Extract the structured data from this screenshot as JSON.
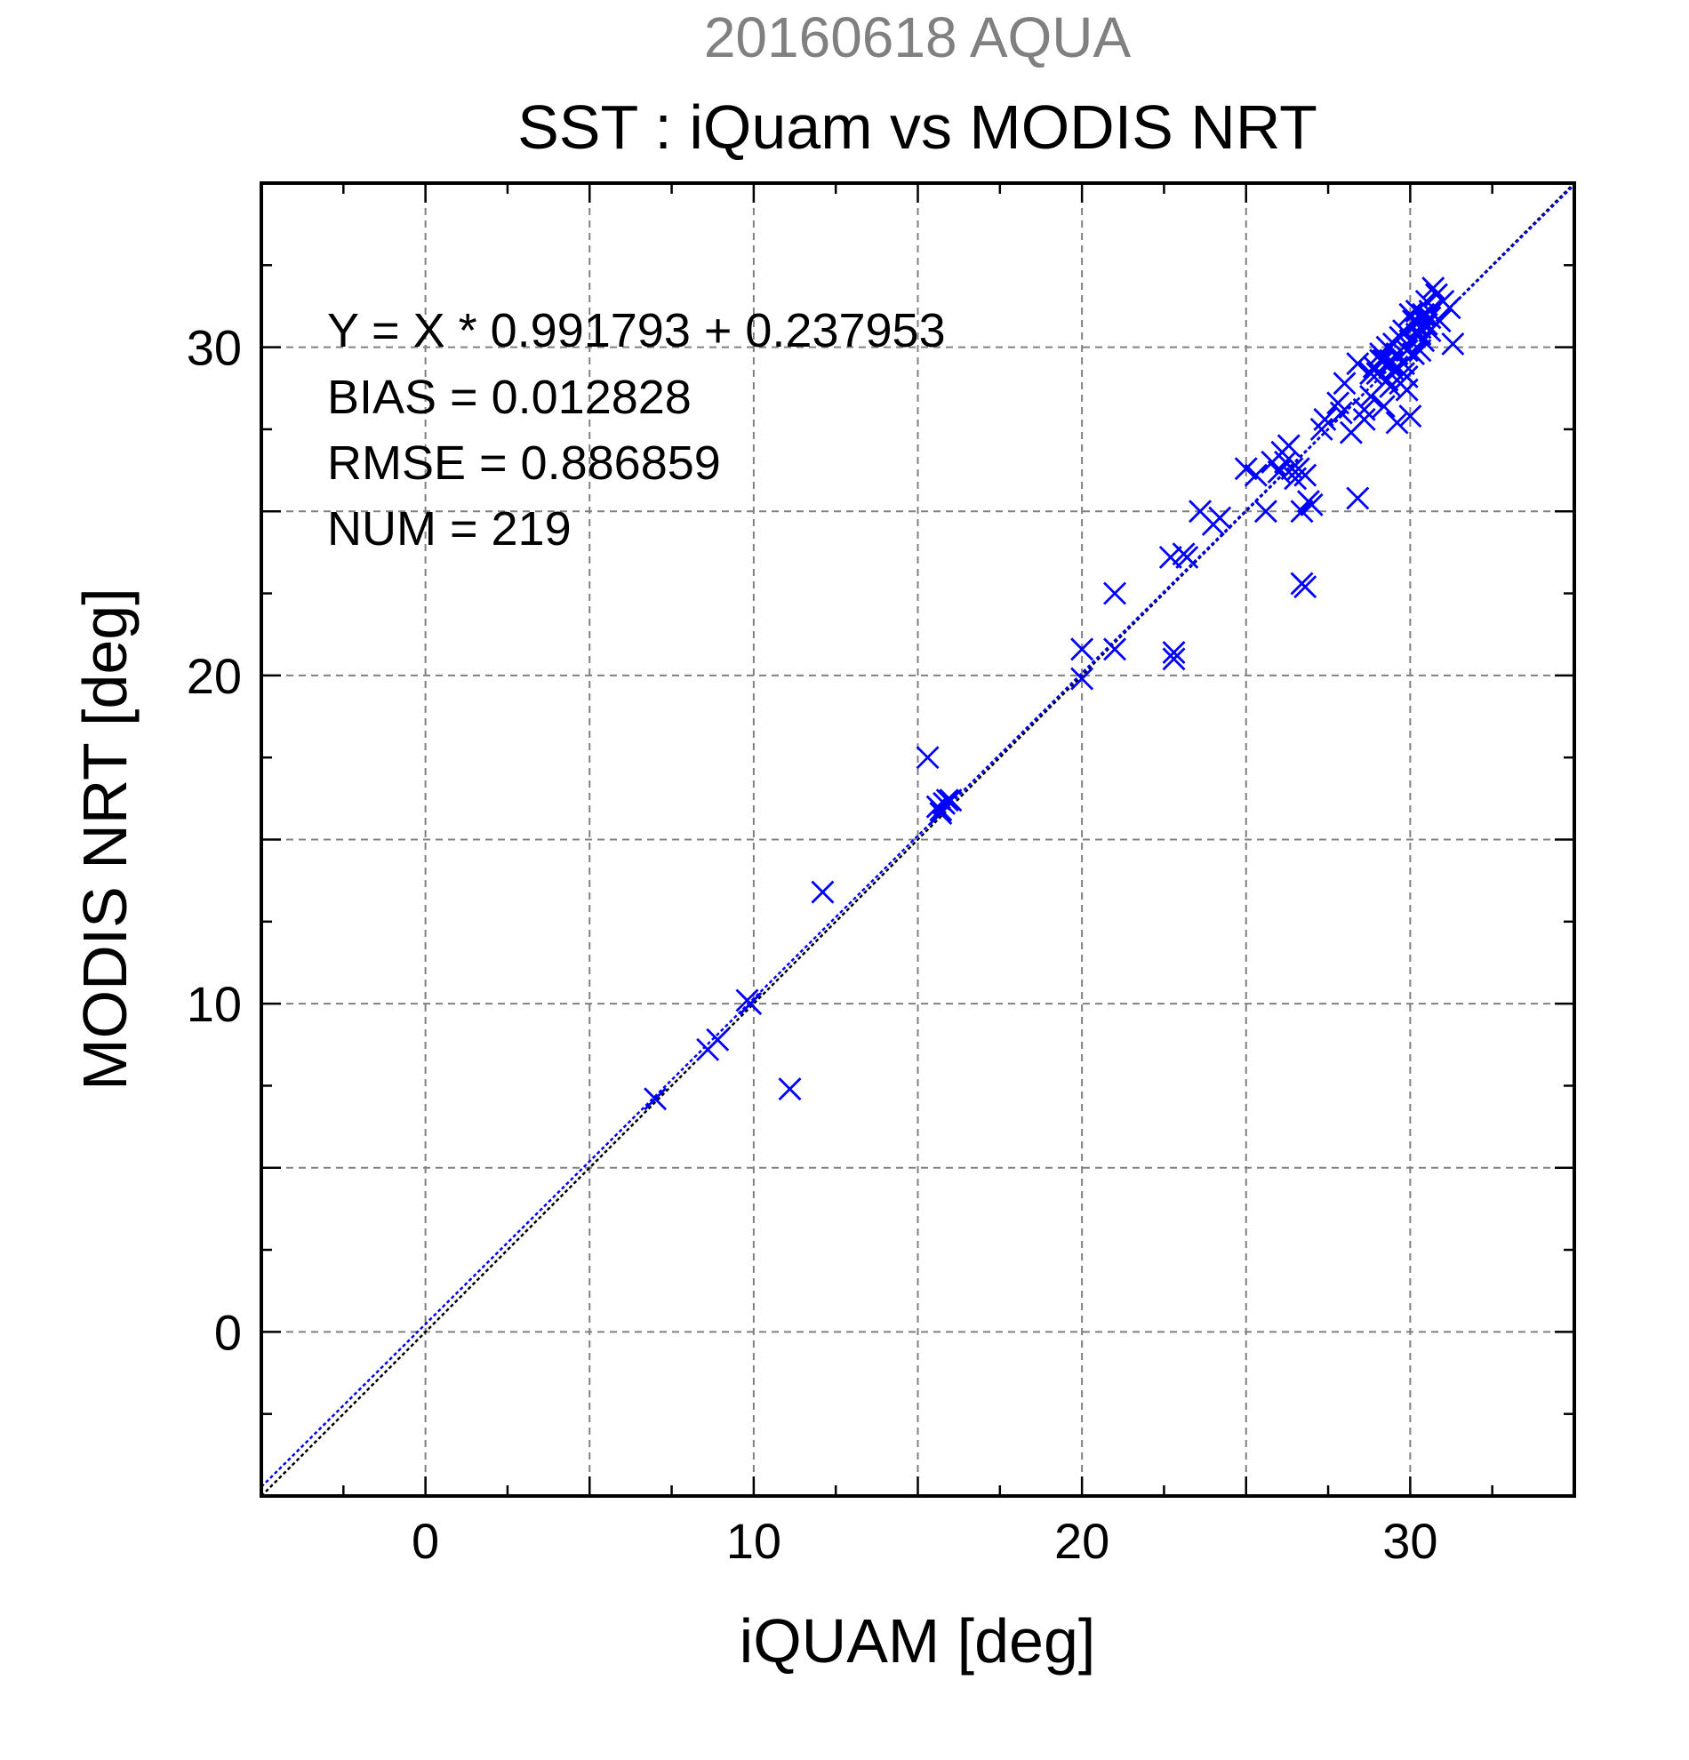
{
  "chart_data": {
    "type": "scatter",
    "supertitle": "20160618 AQUA",
    "title": "SST : iQuam vs MODIS NRT",
    "xlabel": "iQUAM [deg]",
    "ylabel": "MODIS NRT [deg]",
    "xlim": [
      -5,
      35
    ],
    "ylim": [
      -5,
      35
    ],
    "xticks": [
      0,
      10,
      20,
      30
    ],
    "yticks": [
      0,
      10,
      20,
      30
    ],
    "grid": true,
    "stats": [
      "Y = X * 0.991793 + 0.237953",
      "BIAS = 0.012828",
      "RMSE = 0.886859",
      "NUM = 219"
    ],
    "regression": {
      "slope": 0.991793,
      "intercept": 0.237953
    },
    "colors": {
      "points": "#0000ff",
      "identity_line": "#000000",
      "fit_line": "#0000ff",
      "supertitle": "#808080",
      "grid": "#808080"
    },
    "series": [
      {
        "marker": "x",
        "x": [
          7.0,
          8.6,
          8.9,
          9.8,
          9.9,
          11.1,
          12.1,
          15.3,
          15.6,
          15.7,
          15.8,
          15.9,
          16.0,
          15.7,
          20.0,
          20.0,
          21.0,
          21.0,
          22.8,
          22.8,
          22.7,
          23.1,
          23.2,
          23.6,
          24.0,
          24.2,
          25.0,
          25.3,
          25.6,
          25.8,
          26.0,
          26.1,
          26.2,
          26.3,
          26.4,
          26.5,
          26.6,
          26.7,
          26.8,
          26.7,
          26.8,
          26.9,
          27.0,
          27.3,
          27.4,
          27.8,
          27.9,
          28.0,
          28.2,
          28.4,
          28.4,
          28.6,
          28.8,
          28.9,
          29.0,
          29.1,
          29.1,
          29.2,
          29.3,
          29.3,
          29.4,
          29.4,
          29.5,
          29.5,
          29.6,
          29.6,
          29.7,
          29.7,
          29.8,
          29.8,
          29.9,
          29.9,
          30.0,
          30.0,
          30.0,
          30.1,
          30.1,
          30.2,
          30.2,
          30.3,
          30.3,
          30.4,
          30.4,
          30.5,
          30.5,
          30.6,
          30.6,
          30.7,
          30.8,
          30.9,
          31.0,
          31.2,
          31.3,
          29.6,
          29.8,
          30.2,
          29.4,
          28.8,
          29.9,
          30.6,
          30.3,
          29.2,
          28.6
        ],
        "y": [
          7.1,
          8.6,
          8.9,
          10.1,
          10.0,
          7.4,
          13.4,
          17.5,
          16.0,
          15.8,
          16.1,
          16.2,
          16.2,
          15.9,
          19.9,
          20.8,
          20.8,
          22.5,
          20.5,
          20.7,
          23.6,
          23.7,
          23.6,
          25.0,
          24.6,
          24.8,
          26.3,
          26.1,
          25.0,
          26.5,
          26.2,
          26.8,
          26.5,
          27.0,
          26.3,
          26.0,
          26.3,
          25.0,
          22.7,
          22.8,
          26.1,
          25.3,
          25.2,
          27.5,
          27.8,
          28.3,
          28.0,
          28.9,
          27.4,
          25.4,
          29.5,
          27.8,
          28.5,
          29.4,
          29.2,
          29.6,
          29.8,
          28.2,
          29.0,
          30.0,
          28.8,
          29.6,
          29.3,
          30.1,
          27.7,
          29.8,
          28.9,
          30.3,
          29.5,
          30.5,
          28.7,
          29.9,
          30.2,
          31.0,
          27.9,
          29.8,
          30.8,
          30.4,
          31.1,
          29.9,
          30.6,
          31.0,
          30.2,
          30.7,
          31.4,
          30.5,
          31.1,
          31.8,
          31.6,
          30.8,
          31.4,
          31.2,
          30.1,
          29.4,
          29.2,
          30.7,
          29.5,
          29.2,
          29.1,
          30.9,
          30.4,
          29.6,
          28.1
        ]
      }
    ]
  }
}
